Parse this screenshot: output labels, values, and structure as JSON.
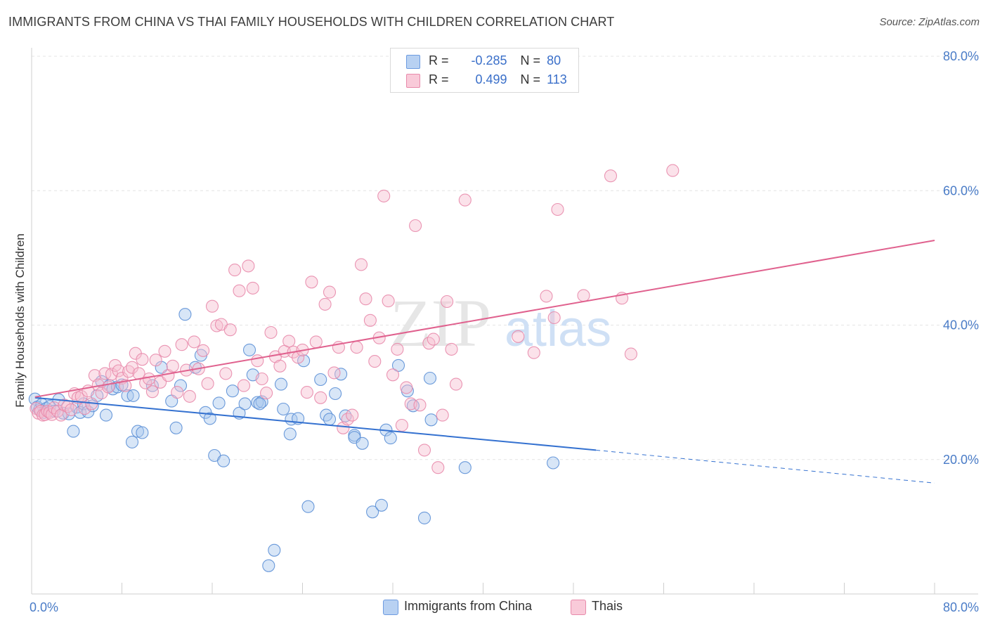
{
  "header": {
    "title": "IMMIGRANTS FROM CHINA VS THAI FAMILY HOUSEHOLDS WITH CHILDREN CORRELATION CHART",
    "source": "Source: ZipAtlas.com"
  },
  "legend": {
    "rows": [
      {
        "r_label": "R =",
        "r_value": "-0.285",
        "n_label": "N =",
        "n_value": "80"
      },
      {
        "r_label": "R =",
        "r_value": "0.499",
        "n_label": "N =",
        "n_value": "113"
      }
    ]
  },
  "watermark": {
    "zip": "ZIP",
    "atlas": "atlas"
  },
  "colors": {
    "china_fill": "#a9c7ee",
    "china_stroke": "#5b8fd6",
    "china_line": "#3471d0",
    "thai_fill": "#f6bfd1",
    "thai_stroke": "#e88aab",
    "thai_line": "#e0618e",
    "tick_text": "#4a7cc7",
    "grid": "#e4e4e4"
  },
  "chart_data": {
    "type": "scatter",
    "title": "IMMIGRANTS FROM CHINA VS THAI FAMILY HOUSEHOLDS WITH CHILDREN CORRELATION CHART",
    "xlabel": "",
    "ylabel": "Family Households with Children",
    "xlim": [
      0,
      80
    ],
    "ylim": [
      0,
      80
    ],
    "x_tick_labels": [
      "0.0%",
      "80.0%"
    ],
    "y_ticks": [
      20,
      40,
      60,
      80
    ],
    "y_tick_labels": [
      "20.0%",
      "40.0%",
      "60.0%",
      "80.0%"
    ],
    "grid": true,
    "legend_position": "top-center",
    "series": [
      {
        "name": "Immigrants from China",
        "trend": {
          "x0": 0.3,
          "y0": 29.2,
          "x1": 50,
          "y1": 21.4,
          "dash_to_x": 80,
          "dash_to_y": 16.5
        },
        "points": [
          [
            0.3,
            29.0
          ],
          [
            0.5,
            27.8
          ],
          [
            0.7,
            27.4
          ],
          [
            0.9,
            28.2
          ],
          [
            1.1,
            27.0
          ],
          [
            1.3,
            27.6
          ],
          [
            1.6,
            27.9
          ],
          [
            2.0,
            27.2
          ],
          [
            2.4,
            28.9
          ],
          [
            2.8,
            26.9
          ],
          [
            3.3,
            26.8
          ],
          [
            3.7,
            24.2
          ],
          [
            4.0,
            27.8
          ],
          [
            4.3,
            27.0
          ],
          [
            4.6,
            28.3
          ],
          [
            5.0,
            27.1
          ],
          [
            5.4,
            28.0
          ],
          [
            5.8,
            29.5
          ],
          [
            6.2,
            31.6
          ],
          [
            6.6,
            26.6
          ],
          [
            6.9,
            31.0
          ],
          [
            7.2,
            30.5
          ],
          [
            7.6,
            30.8
          ],
          [
            8.0,
            31.1
          ],
          [
            8.5,
            29.5
          ],
          [
            9.0,
            29.5
          ],
          [
            9.4,
            24.2
          ],
          [
            8.9,
            22.6
          ],
          [
            9.8,
            24.0
          ],
          [
            10.7,
            31.0
          ],
          [
            11.5,
            33.7
          ],
          [
            12.4,
            28.7
          ],
          [
            12.8,
            24.7
          ],
          [
            13.2,
            31.0
          ],
          [
            13.6,
            41.6
          ],
          [
            14.5,
            33.7
          ],
          [
            15.0,
            35.5
          ],
          [
            15.4,
            27.0
          ],
          [
            15.8,
            26.1
          ],
          [
            16.2,
            20.6
          ],
          [
            16.6,
            28.4
          ],
          [
            17.0,
            19.8
          ],
          [
            17.8,
            30.2
          ],
          [
            18.4,
            26.9
          ],
          [
            18.9,
            28.3
          ],
          [
            19.3,
            36.3
          ],
          [
            19.6,
            32.6
          ],
          [
            20.0,
            28.5
          ],
          [
            20.4,
            28.6
          ],
          [
            20.2,
            28.3
          ],
          [
            21.0,
            4.2
          ],
          [
            21.5,
            6.5
          ],
          [
            22.1,
            31.2
          ],
          [
            22.3,
            27.5
          ],
          [
            22.9,
            23.8
          ],
          [
            23.0,
            26.0
          ],
          [
            23.6,
            26.1
          ],
          [
            24.1,
            34.7
          ],
          [
            24.5,
            13.0
          ],
          [
            25.6,
            31.9
          ],
          [
            26.1,
            26.6
          ],
          [
            26.4,
            26.0
          ],
          [
            26.9,
            29.8
          ],
          [
            27.4,
            32.7
          ],
          [
            27.8,
            26.5
          ],
          [
            28.6,
            23.6
          ],
          [
            28.6,
            23.3
          ],
          [
            29.3,
            22.4
          ],
          [
            30.2,
            12.2
          ],
          [
            31.0,
            13.2
          ],
          [
            31.4,
            24.4
          ],
          [
            31.8,
            23.2
          ],
          [
            32.5,
            34.0
          ],
          [
            33.3,
            30.2
          ],
          [
            33.8,
            28.0
          ],
          [
            34.8,
            11.3
          ],
          [
            35.3,
            32.1
          ],
          [
            35.4,
            25.9
          ],
          [
            38.4,
            18.8
          ],
          [
            46.2,
            19.5
          ]
        ]
      },
      {
        "name": "Thais",
        "trend": {
          "x0": 0.3,
          "y0": 29.3,
          "x1": 80,
          "y1": 52.6
        },
        "points": [
          [
            0.4,
            27.6
          ],
          [
            0.6,
            26.9
          ],
          [
            0.8,
            27.2
          ],
          [
            1.0,
            26.6
          ],
          [
            1.2,
            26.7
          ],
          [
            1.4,
            27.2
          ],
          [
            1.6,
            27.0
          ],
          [
            1.8,
            26.7
          ],
          [
            2.0,
            27.7
          ],
          [
            2.3,
            27.2
          ],
          [
            2.6,
            26.6
          ],
          [
            2.9,
            28.1
          ],
          [
            3.2,
            27.9
          ],
          [
            3.5,
            27.4
          ],
          [
            3.8,
            29.8
          ],
          [
            4.1,
            29.2
          ],
          [
            4.4,
            29.4
          ],
          [
            4.7,
            27.6
          ],
          [
            5.0,
            30.2
          ],
          [
            5.3,
            28.3
          ],
          [
            5.6,
            32.5
          ],
          [
            5.9,
            31.1
          ],
          [
            6.2,
            29.9
          ],
          [
            6.5,
            32.8
          ],
          [
            6.8,
            30.8
          ],
          [
            7.1,
            32.7
          ],
          [
            7.4,
            34.0
          ],
          [
            7.7,
            33.2
          ],
          [
            8.0,
            32.1
          ],
          [
            8.3,
            31.0
          ],
          [
            8.6,
            33.1
          ],
          [
            8.9,
            33.7
          ],
          [
            9.2,
            35.8
          ],
          [
            9.5,
            32.8
          ],
          [
            9.8,
            34.9
          ],
          [
            10.1,
            31.4
          ],
          [
            10.4,
            32.0
          ],
          [
            10.7,
            30.1
          ],
          [
            11.0,
            34.8
          ],
          [
            11.4,
            31.5
          ],
          [
            11.8,
            36.1
          ],
          [
            12.1,
            32.5
          ],
          [
            12.5,
            33.9
          ],
          [
            12.9,
            30.0
          ],
          [
            13.3,
            37.1
          ],
          [
            13.7,
            33.3
          ],
          [
            14.0,
            29.4
          ],
          [
            14.4,
            37.5
          ],
          [
            14.8,
            33.5
          ],
          [
            15.2,
            36.2
          ],
          [
            15.6,
            31.3
          ],
          [
            16.0,
            42.8
          ],
          [
            16.4,
            39.9
          ],
          [
            16.8,
            40.1
          ],
          [
            17.2,
            32.8
          ],
          [
            17.6,
            39.3
          ],
          [
            18.0,
            48.2
          ],
          [
            18.4,
            45.1
          ],
          [
            18.8,
            31.0
          ],
          [
            19.2,
            48.8
          ],
          [
            19.6,
            45.5
          ],
          [
            20.0,
            34.7
          ],
          [
            20.4,
            32.0
          ],
          [
            20.8,
            29.9
          ],
          [
            21.2,
            38.9
          ],
          [
            21.6,
            35.3
          ],
          [
            22.0,
            33.9
          ],
          [
            22.4,
            36.1
          ],
          [
            22.8,
            37.6
          ],
          [
            23.2,
            36.0
          ],
          [
            23.6,
            35.2
          ],
          [
            24.0,
            36.3
          ],
          [
            24.4,
            30.0
          ],
          [
            24.8,
            46.4
          ],
          [
            25.2,
            37.5
          ],
          [
            25.6,
            29.2
          ],
          [
            26.0,
            43.1
          ],
          [
            26.4,
            44.9
          ],
          [
            26.8,
            32.9
          ],
          [
            27.2,
            36.7
          ],
          [
            27.6,
            24.7
          ],
          [
            28.0,
            26.0
          ],
          [
            28.4,
            26.6
          ],
          [
            28.8,
            36.7
          ],
          [
            29.2,
            49.0
          ],
          [
            29.6,
            43.9
          ],
          [
            30.0,
            40.7
          ],
          [
            30.4,
            34.6
          ],
          [
            30.8,
            38.1
          ],
          [
            31.2,
            59.2
          ],
          [
            31.6,
            43.6
          ],
          [
            32.0,
            32.6
          ],
          [
            32.4,
            36.4
          ],
          [
            32.8,
            25.1
          ],
          [
            33.2,
            30.7
          ],
          [
            33.6,
            28.3
          ],
          [
            34.0,
            54.8
          ],
          [
            34.4,
            28.1
          ],
          [
            34.8,
            21.4
          ],
          [
            35.2,
            37.3
          ],
          [
            35.6,
            37.9
          ],
          [
            36.0,
            18.8
          ],
          [
            36.4,
            26.6
          ],
          [
            36.8,
            43.5
          ],
          [
            37.2,
            36.4
          ],
          [
            37.6,
            31.2
          ],
          [
            38.4,
            58.6
          ],
          [
            43.1,
            38.3
          ],
          [
            44.5,
            35.9
          ],
          [
            45.6,
            44.3
          ],
          [
            46.3,
            41.1
          ],
          [
            46.6,
            57.2
          ],
          [
            51.3,
            62.2
          ],
          [
            52.3,
            44.0
          ],
          [
            53.1,
            35.7
          ],
          [
            56.8,
            63.0
          ],
          [
            48.9,
            44.4
          ]
        ]
      }
    ]
  },
  "bottom_legend": {
    "items": [
      {
        "label": "Immigrants from China"
      },
      {
        "label": "Thais"
      }
    ]
  }
}
